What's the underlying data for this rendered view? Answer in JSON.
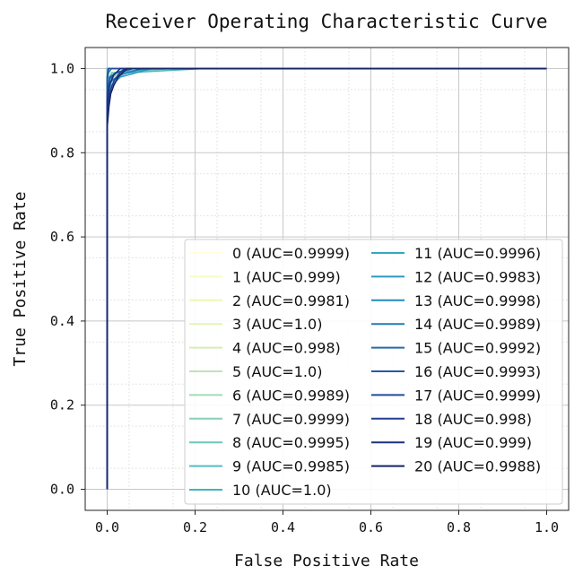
{
  "chart_data": {
    "type": "line",
    "title": "Receiver Operating Characteristic Curve",
    "xlabel": "False Positive Rate",
    "ylabel": "True Positive Rate",
    "xlim": [
      -0.05,
      1.05
    ],
    "ylim": [
      -0.05,
      1.05
    ],
    "xticks": [
      "0.0",
      "0.2",
      "0.4",
      "0.6",
      "0.8",
      "1.0"
    ],
    "yticks": [
      "0.0",
      "0.2",
      "0.4",
      "0.6",
      "0.8",
      "1.0"
    ],
    "grid": true,
    "legend_position": "lower-right",
    "series": [
      {
        "name": "0 (AUC=0.9999)",
        "color": "#ffffd9",
        "x": [
          0,
          0,
          0.002,
          0.004,
          1.0
        ],
        "y": [
          0,
          0.97,
          0.995,
          1.0,
          1.0
        ]
      },
      {
        "name": "1 (AUC=0.999)",
        "color": "#f7fcc4",
        "x": [
          0,
          0,
          0.005,
          0.02,
          1.0
        ],
        "y": [
          0,
          0.94,
          0.985,
          1.0,
          1.0
        ]
      },
      {
        "name": "2 (AUC=0.9981)",
        "color": "#edf8b1",
        "x": [
          0,
          0,
          0.01,
          0.03,
          0.06,
          1.0
        ],
        "y": [
          0,
          0.93,
          0.97,
          0.99,
          1.0,
          1.0
        ]
      },
      {
        "name": "3 (AUC=1.0)",
        "color": "#e3f4b2",
        "x": [
          0,
          0,
          1.0
        ],
        "y": [
          0,
          1.0,
          1.0
        ]
      },
      {
        "name": "4 (AUC=0.998)",
        "color": "#d3eeb3",
        "x": [
          0,
          0,
          0.01,
          0.03,
          0.05,
          1.0
        ],
        "y": [
          0,
          0.92,
          0.96,
          0.98,
          1.0,
          1.0
        ]
      },
      {
        "name": "5 (AUC=1.0)",
        "color": "#bde5b5",
        "x": [
          0,
          0,
          1.0
        ],
        "y": [
          0,
          1.0,
          1.0
        ]
      },
      {
        "name": "6 (AUC=0.9989)",
        "color": "#a4dab7",
        "x": [
          0,
          0,
          0.005,
          0.02,
          0.04,
          1.0
        ],
        "y": [
          0,
          0.93,
          0.97,
          0.985,
          1.0,
          1.0
        ]
      },
      {
        "name": "7 (AUC=0.9999)",
        "color": "#87cfba",
        "x": [
          0,
          0,
          0.004,
          1.0
        ],
        "y": [
          0,
          0.98,
          1.0,
          1.0
        ]
      },
      {
        "name": "8 (AUC=0.9995)",
        "color": "#6cc5bd",
        "x": [
          0,
          0,
          0.01,
          0.15,
          1.0
        ],
        "y": [
          0,
          0.96,
          0.99,
          1.0,
          1.0
        ]
      },
      {
        "name": "9 (AUC=0.9985)",
        "color": "#55bcc1",
        "x": [
          0,
          0,
          0.01,
          0.04,
          0.22,
          1.0
        ],
        "y": [
          0,
          0.93,
          0.97,
          0.99,
          1.0,
          1.0
        ]
      },
      {
        "name": "10 (AUC=1.0)",
        "color": "#41b4c4",
        "x": [
          0,
          0,
          1.0
        ],
        "y": [
          0,
          1.0,
          1.0
        ]
      },
      {
        "name": "11 (AUC=0.9996)",
        "color": "#35a8c3",
        "x": [
          0,
          0,
          0.005,
          0.02,
          0.1,
          1.0
        ],
        "y": [
          0,
          0.95,
          0.98,
          0.99,
          1.0,
          1.0
        ]
      },
      {
        "name": "12 (AUC=0.9983)",
        "color": "#2a9ac1",
        "x": [
          0,
          0,
          0.01,
          0.03,
          0.1,
          1.0
        ],
        "y": [
          0,
          0.92,
          0.96,
          0.98,
          1.0,
          1.0
        ]
      },
      {
        "name": "13 (AUC=0.9998)",
        "color": "#208bbe",
        "x": [
          0,
          0,
          0.003,
          0.01,
          1.0
        ],
        "y": [
          0,
          0.97,
          0.99,
          1.0,
          1.0
        ]
      },
      {
        "name": "14 (AUC=0.9989)",
        "color": "#217bb6",
        "x": [
          0,
          0,
          0.008,
          0.03,
          0.08,
          1.0
        ],
        "y": [
          0,
          0.93,
          0.97,
          0.985,
          1.0,
          1.0
        ]
      },
      {
        "name": "15 (AUC=0.9992)",
        "color": "#236bad",
        "x": [
          0,
          0,
          0.006,
          0.02,
          0.05,
          1.0
        ],
        "y": [
          0,
          0.94,
          0.975,
          0.99,
          1.0,
          1.0
        ]
      },
      {
        "name": "16 (AUC=0.9993)",
        "color": "#245ba4",
        "x": [
          0,
          0,
          0.006,
          0.02,
          0.06,
          1.0
        ],
        "y": [
          0,
          0.94,
          0.98,
          0.99,
          1.0,
          1.0
        ]
      },
      {
        "name": "17 (AUC=0.9999)",
        "color": "#244b9b",
        "x": [
          0,
          0,
          0.003,
          1.0
        ],
        "y": [
          0,
          0.98,
          1.0,
          1.0
        ]
      },
      {
        "name": "18 (AUC=0.998)",
        "color": "#223d93",
        "x": [
          0,
          0,
          0.004,
          0.008,
          0.015,
          0.025,
          0.04,
          1.0
        ],
        "y": [
          0,
          0.9,
          0.93,
          0.95,
          0.97,
          0.985,
          1.0,
          1.0
        ]
      },
      {
        "name": "19 (AUC=0.999)",
        "color": "#1b307e",
        "x": [
          0,
          0,
          0.005,
          0.015,
          0.03,
          1.0
        ],
        "y": [
          0,
          0.92,
          0.96,
          0.985,
          1.0,
          1.0
        ]
      },
      {
        "name": "20 (AUC=0.9988)",
        "color": "#142568",
        "x": [
          0,
          0,
          0.004,
          0.008,
          0.015,
          0.025,
          0.045,
          1.0
        ],
        "y": [
          0,
          0.86,
          0.91,
          0.94,
          0.96,
          0.98,
          1.0,
          1.0
        ]
      }
    ]
  }
}
